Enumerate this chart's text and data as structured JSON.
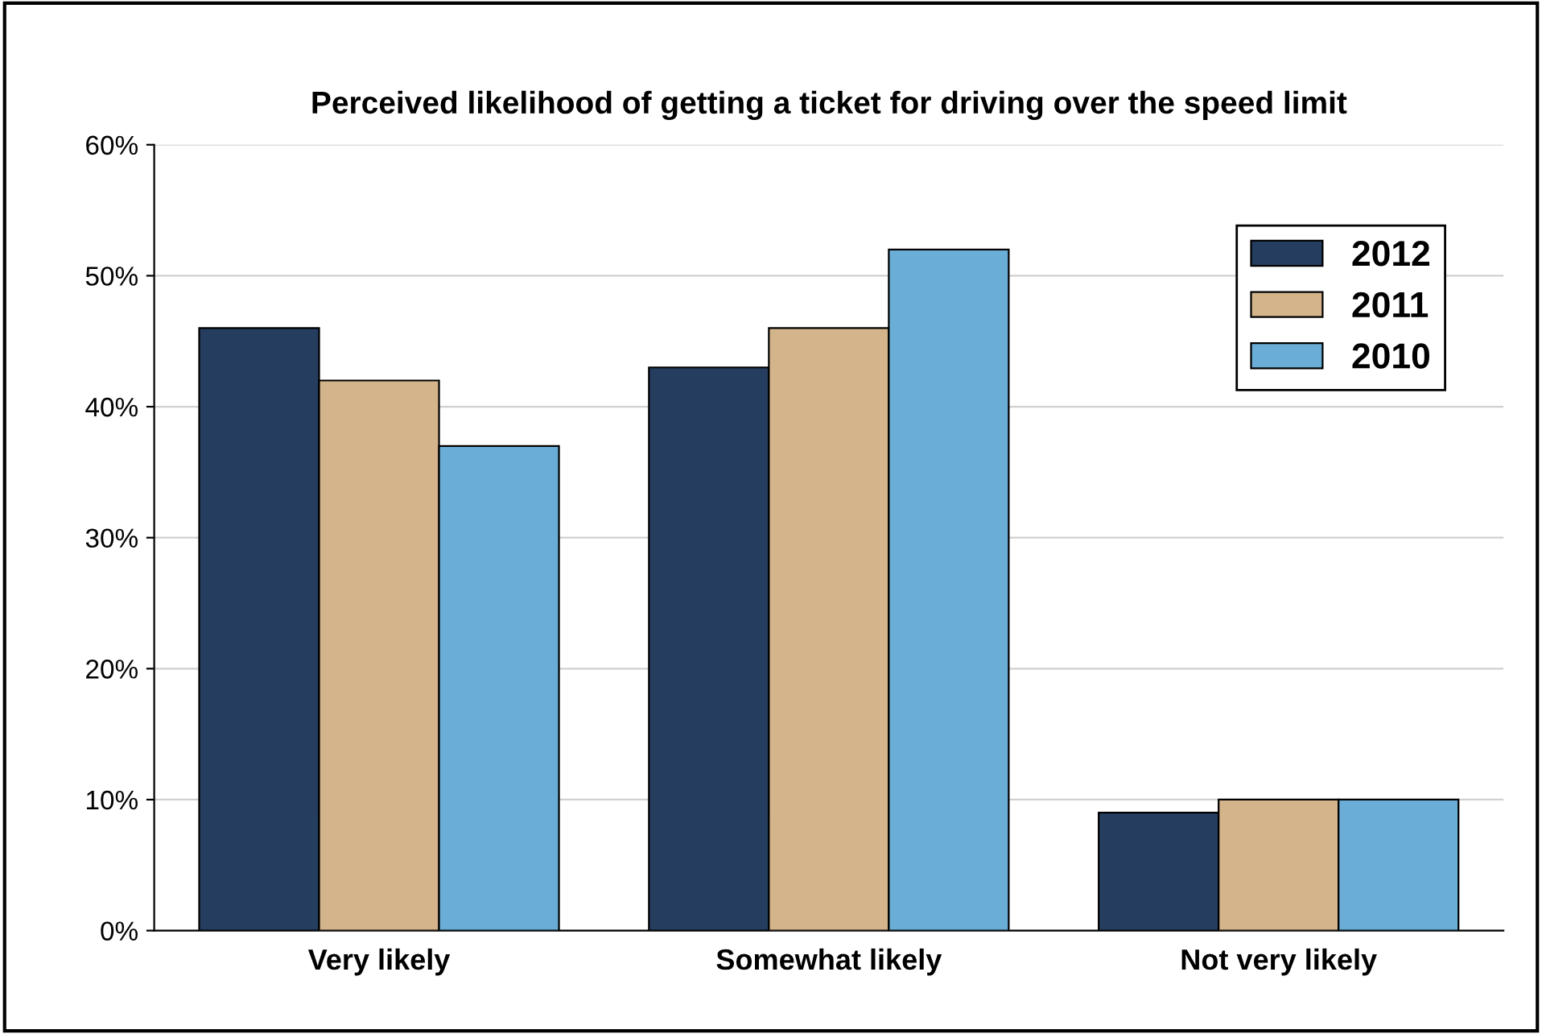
{
  "chart_data": {
    "type": "bar",
    "title": "Perceived likelihood of getting a ticket for driving over the speed limit",
    "categories": [
      "Very likely",
      "Somewhat likely",
      "Not very likely"
    ],
    "series": [
      {
        "name": "2012",
        "color": "#253d5e",
        "values": [
          46,
          43,
          9
        ]
      },
      {
        "name": "2011",
        "color": "#d3b48b",
        "values": [
          42,
          46,
          10
        ]
      },
      {
        "name": "2010",
        "color": "#6aaed8",
        "values": [
          37,
          52,
          10
        ]
      }
    ],
    "ylim": [
      0,
      60
    ],
    "yticks": [
      {
        "value": 0,
        "label": "0%"
      },
      {
        "value": 10,
        "label": "10%"
      },
      {
        "value": 20,
        "label": "20%"
      },
      {
        "value": 30,
        "label": "30%"
      },
      {
        "value": 40,
        "label": "40%"
      },
      {
        "value": 50,
        "label": "50%"
      },
      {
        "value": 60,
        "label": "60%"
      }
    ],
    "grid": "y",
    "legend": "top right"
  }
}
